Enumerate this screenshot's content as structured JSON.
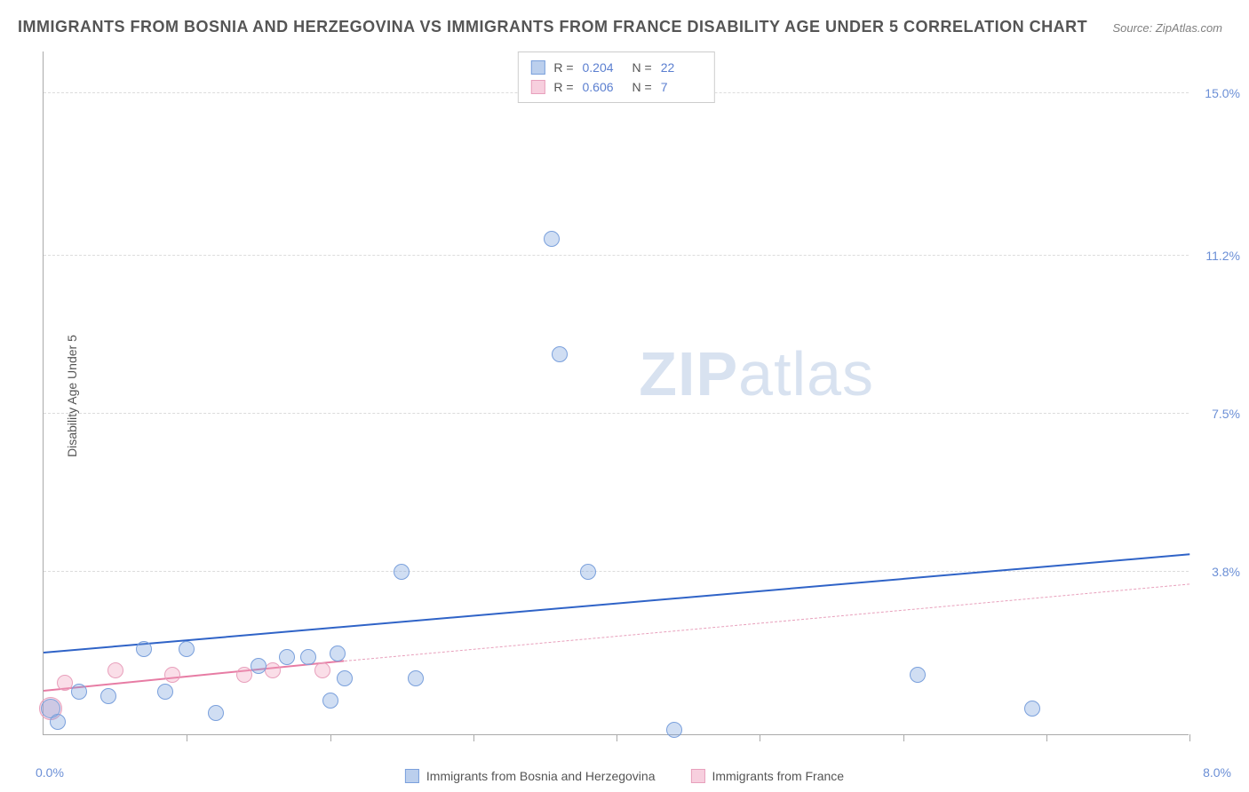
{
  "title": "IMMIGRANTS FROM BOSNIA AND HERZEGOVINA VS IMMIGRANTS FROM FRANCE DISABILITY AGE UNDER 5 CORRELATION CHART",
  "source": "Source: ZipAtlas.com",
  "y_axis_label": "Disability Age Under 5",
  "watermark_bold": "ZIP",
  "watermark_rest": "atlas",
  "chart": {
    "type": "scatter",
    "xlim": [
      0.0,
      8.0
    ],
    "ylim": [
      0.0,
      16.0
    ],
    "x_ticks": [
      0.0,
      1.0,
      2.0,
      3.0,
      4.0,
      5.0,
      6.0,
      7.0,
      8.0
    ],
    "y_gridlines": [
      3.8,
      7.5,
      11.2,
      15.0
    ],
    "y_tick_labels": [
      "3.8%",
      "7.5%",
      "11.2%",
      "15.0%"
    ],
    "x_origin_label": "0.0%",
    "x_max_label": "8.0%",
    "grid_color": "#dcdcdc",
    "axis_color": "#aaaaaa",
    "background_color": "#ffffff",
    "series": [
      {
        "name": "Immigrants from Bosnia and Herzegovina",
        "color_fill": "rgba(120,160,220,0.35)",
        "color_stroke": "#7aa0dc",
        "marker_radius": 9,
        "R": "0.204",
        "N": "22",
        "trend": {
          "x1": 0.0,
          "y1": 1.9,
          "x2": 8.0,
          "y2": 4.2,
          "color": "#2f63c7",
          "width": 2.5,
          "dashed": false
        },
        "points": [
          {
            "x": 0.05,
            "y": 0.6,
            "r": 11
          },
          {
            "x": 0.25,
            "y": 1.0,
            "r": 9
          },
          {
            "x": 0.45,
            "y": 0.9,
            "r": 9
          },
          {
            "x": 0.7,
            "y": 2.0,
            "r": 9
          },
          {
            "x": 0.85,
            "y": 1.0,
            "r": 9
          },
          {
            "x": 1.0,
            "y": 2.0,
            "r": 9
          },
          {
            "x": 1.2,
            "y": 0.5,
            "r": 9
          },
          {
            "x": 1.5,
            "y": 1.6,
            "r": 9
          },
          {
            "x": 1.7,
            "y": 1.8,
            "r": 9
          },
          {
            "x": 1.85,
            "y": 1.8,
            "r": 9
          },
          {
            "x": 2.0,
            "y": 0.8,
            "r": 9
          },
          {
            "x": 2.05,
            "y": 1.9,
            "r": 9
          },
          {
            "x": 2.1,
            "y": 1.3,
            "r": 9
          },
          {
            "x": 2.5,
            "y": 3.8,
            "r": 9
          },
          {
            "x": 2.6,
            "y": 1.3,
            "r": 9
          },
          {
            "x": 3.55,
            "y": 11.6,
            "r": 9
          },
          {
            "x": 3.8,
            "y": 3.8,
            "r": 9
          },
          {
            "x": 3.6,
            "y": 8.9,
            "r": 9
          },
          {
            "x": 4.4,
            "y": 0.1,
            "r": 9
          },
          {
            "x": 6.1,
            "y": 1.4,
            "r": 9
          },
          {
            "x": 6.9,
            "y": 0.6,
            "r": 9
          },
          {
            "x": 0.1,
            "y": 0.3,
            "r": 9
          }
        ]
      },
      {
        "name": "Immigrants from France",
        "color_fill": "rgba(240,160,190,0.35)",
        "color_stroke": "#e8a0bc",
        "marker_radius": 9,
        "R": "0.606",
        "N": "7",
        "trend": {
          "x1": 0.0,
          "y1": 1.0,
          "x2": 2.1,
          "y2": 1.7,
          "color": "#e77ca4",
          "width": 2,
          "dashed": false,
          "ext_x2": 8.0,
          "ext_y2": 3.5,
          "ext_color": "#e8a0bc",
          "ext_dashed": true
        },
        "points": [
          {
            "x": 0.05,
            "y": 0.6,
            "r": 13
          },
          {
            "x": 0.15,
            "y": 1.2,
            "r": 9
          },
          {
            "x": 0.5,
            "y": 1.5,
            "r": 9
          },
          {
            "x": 0.9,
            "y": 1.4,
            "r": 9
          },
          {
            "x": 1.4,
            "y": 1.4,
            "r": 9
          },
          {
            "x": 1.6,
            "y": 1.5,
            "r": 9
          },
          {
            "x": 1.95,
            "y": 1.5,
            "r": 9
          }
        ]
      }
    ]
  },
  "legend_bottom": [
    {
      "label": "Immigrants from Bosnia and Herzegovina",
      "fill": "rgba(120,160,220,0.5)",
      "stroke": "#7aa0dc"
    },
    {
      "label": "Immigrants from France",
      "fill": "rgba(240,160,190,0.5)",
      "stroke": "#e8a0bc"
    }
  ]
}
